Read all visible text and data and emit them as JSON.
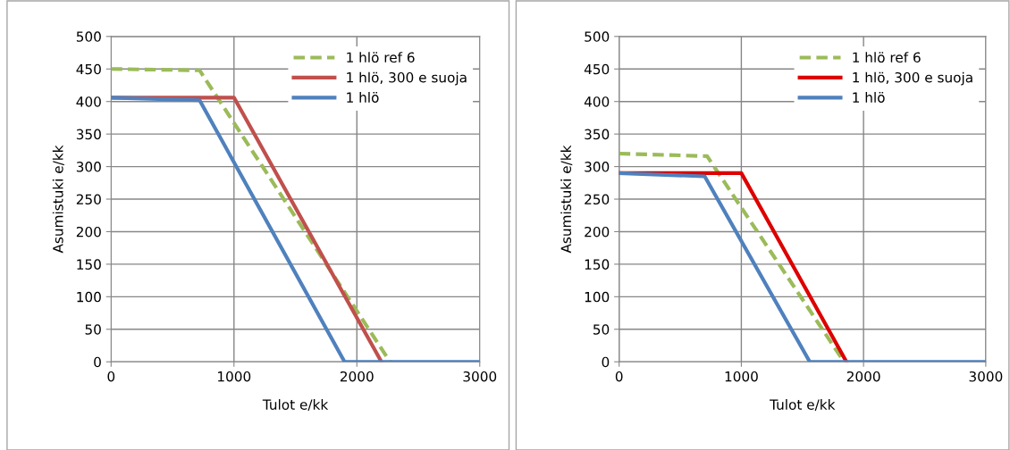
{
  "chart_data": [
    {
      "type": "line",
      "xlabel": "Tulot e/kk",
      "ylabel": "Asumistuki e/kk",
      "xlim": [
        0,
        3000
      ],
      "ylim": [
        0,
        500
      ],
      "xticks": [
        0,
        1000,
        2000,
        3000
      ],
      "yticks": [
        0,
        50,
        100,
        150,
        200,
        250,
        300,
        350,
        400,
        450,
        500
      ],
      "grid": true,
      "legend": "top right",
      "marker": "none",
      "series": [
        {
          "name": "1 hlö ref 6",
          "color": "#9bbb59",
          "line_style": "dashed",
          "x": [
            0,
            720,
            2270
          ],
          "values": [
            450,
            448,
            0
          ]
        },
        {
          "name": "1 hlö, 300 e suoja",
          "color": "#c0504d",
          "line_style": "solid",
          "x": [
            0,
            1000,
            2200
          ],
          "values": [
            406,
            406,
            0
          ]
        },
        {
          "name": "1 hlö",
          "color": "#4f81bd",
          "line_style": "solid",
          "x": [
            0,
            720,
            1900,
            3000
          ],
          "values": [
            406,
            402,
            0,
            0
          ]
        }
      ]
    },
    {
      "type": "line",
      "xlabel": "Tulot e/kk",
      "ylabel": "Asumistuki e/kk",
      "xlim": [
        0,
        3000
      ],
      "ylim": [
        0,
        500
      ],
      "xticks": [
        0,
        1000,
        2000,
        3000
      ],
      "yticks": [
        0,
        50,
        100,
        150,
        200,
        250,
        300,
        350,
        400,
        450,
        500
      ],
      "grid": true,
      "legend": "top right",
      "marker": "none",
      "series": [
        {
          "name": "1 hlö ref 6",
          "color": "#9bbb59",
          "line_style": "dashed",
          "x": [
            0,
            720,
            1840
          ],
          "values": [
            320,
            316,
            0
          ]
        },
        {
          "name": "1 hlö, 300 e suoja",
          "color": "#dd0000",
          "line_style": "solid",
          "x": [
            0,
            1000,
            1860
          ],
          "values": [
            290,
            290,
            0
          ]
        },
        {
          "name": "1 hlö",
          "color": "#4f81bd",
          "line_style": "solid",
          "x": [
            0,
            700,
            1560,
            3000
          ],
          "values": [
            290,
            285,
            0,
            0
          ]
        }
      ]
    }
  ]
}
